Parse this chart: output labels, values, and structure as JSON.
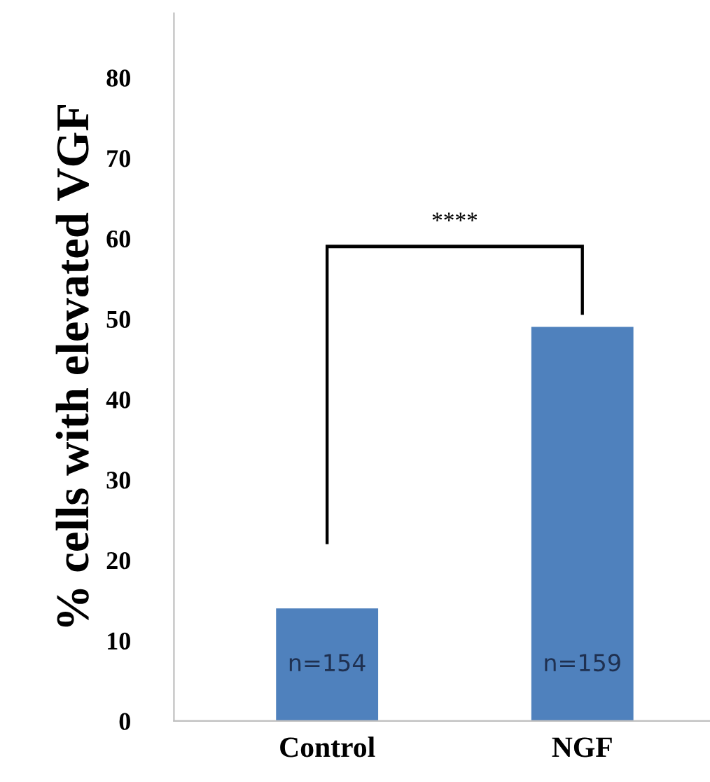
{
  "chart_data": {
    "type": "bar",
    "ylabel": "% cells with elevated VGF",
    "categories": [
      "Control",
      "NGF"
    ],
    "values": [
      14,
      49
    ],
    "color": "#4f81bd",
    "ylim": [
      0,
      88
    ],
    "yticks": [
      0,
      10,
      20,
      30,
      40,
      50,
      60,
      70,
      80
    ],
    "grid": false,
    "legend": false,
    "annotations": [
      "n=154",
      "n=159",
      "****"
    ]
  }
}
